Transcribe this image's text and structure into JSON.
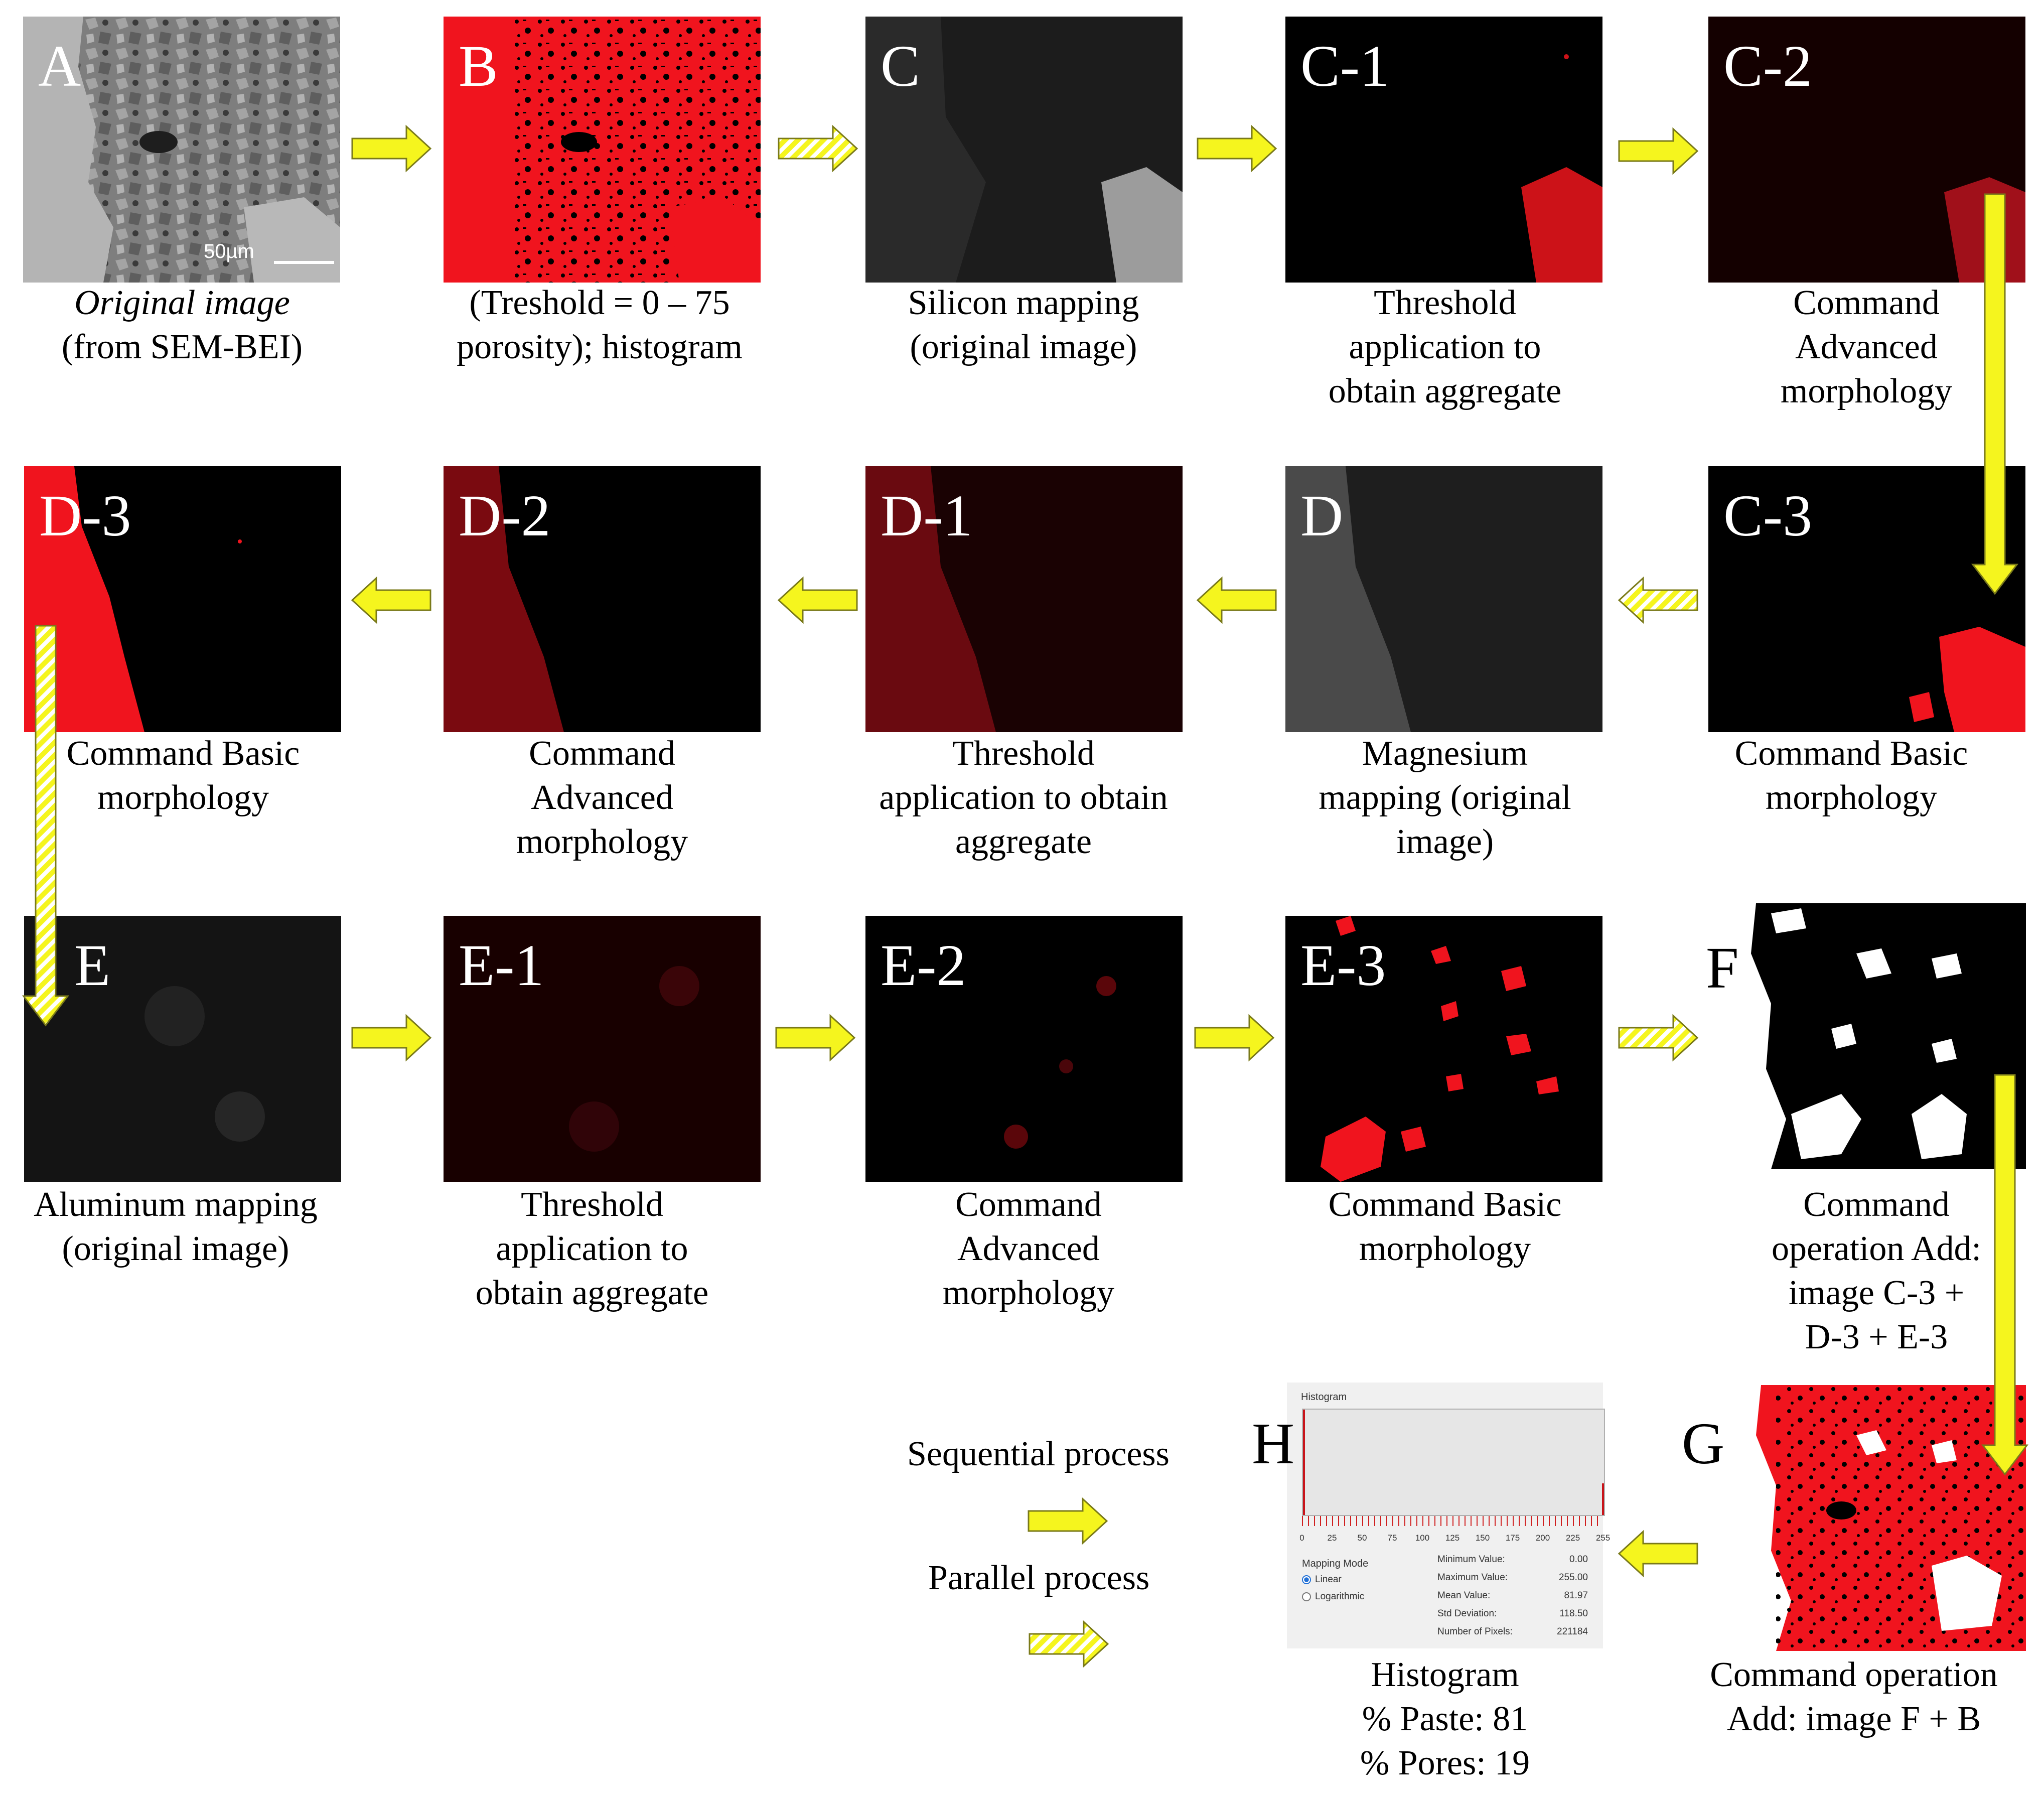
{
  "panels": {
    "A": {
      "label": "A",
      "scale_bar": "50µm",
      "caption": [
        "Original image",
        "(from SEM-BEI)"
      ]
    },
    "B": {
      "label": "B",
      "caption": [
        "(Treshold = 0 – 75",
        "porosity); histogram"
      ]
    },
    "C": {
      "label": "C",
      "caption": [
        "Silicon mapping",
        "(original image)"
      ]
    },
    "C1": {
      "label": "C-1",
      "caption": [
        "Threshold",
        "application to",
        "obtain aggregate"
      ]
    },
    "C2": {
      "label": "C-2",
      "caption": [
        "Command",
        "Advanced",
        "morphology"
      ]
    },
    "C3": {
      "label": "C-3",
      "caption": [
        "Command Basic",
        "morphology"
      ]
    },
    "D": {
      "label": "D",
      "caption": [
        "Magnesium",
        "mapping (original",
        "image)"
      ]
    },
    "D1": {
      "label": "D-1",
      "caption": [
        "Threshold",
        "application to obtain",
        "aggregate"
      ]
    },
    "D2": {
      "label": "D-2",
      "caption": [
        "Command",
        "Advanced",
        "morphology"
      ]
    },
    "D3": {
      "label": "D-3",
      "caption": [
        "Command Basic",
        "morphology"
      ]
    },
    "E": {
      "label": "E",
      "caption": [
        "Aluminum mapping",
        "(original image)"
      ]
    },
    "E1": {
      "label": "E-1",
      "caption": [
        "Threshold",
        "application to",
        "obtain aggregate"
      ]
    },
    "E2": {
      "label": "E-2",
      "caption": [
        "Command",
        "Advanced",
        "morphology"
      ]
    },
    "E3": {
      "label": "E-3",
      "caption": [
        "Command Basic",
        "morphology"
      ]
    },
    "F": {
      "label": "F",
      "caption": [
        "Command",
        "operation Add:",
        "image C-3 +",
        "D-3 + E-3"
      ]
    },
    "G": {
      "label": "G",
      "caption": [
        "Command operation",
        "Add: image F + B"
      ]
    },
    "H": {
      "label": "H",
      "caption": [
        "Histogram",
        "% Paste: 81",
        "% Pores: 19"
      ]
    }
  },
  "histogram": {
    "title": "Histogram",
    "x_ticks": [
      "0",
      "25",
      "50",
      "75",
      "100",
      "125",
      "150",
      "175",
      "200",
      "225",
      "255"
    ],
    "mapping_mode_label": "Mapping Mode",
    "modes": [
      "Linear",
      "Logarithmic"
    ],
    "selected_mode": "Linear",
    "stats": [
      {
        "label": "Minimum Value:",
        "value": "0.00"
      },
      {
        "label": "Maximum Value:",
        "value": "255.00"
      },
      {
        "label": "Mean Value:",
        "value": "81.97"
      },
      {
        "label": "Std Deviation:",
        "value": "118.50"
      },
      {
        "label": "Number of Pixels:",
        "value": "221184"
      }
    ]
  },
  "legend": {
    "sequential": "Sequential process",
    "parallel": "Parallel process"
  },
  "colors": {
    "arrow_fill": "#f5f51e",
    "arrow_stroke": "#7a7a1a",
    "mask_red": "#f0141e",
    "pore_black": "#000000"
  }
}
